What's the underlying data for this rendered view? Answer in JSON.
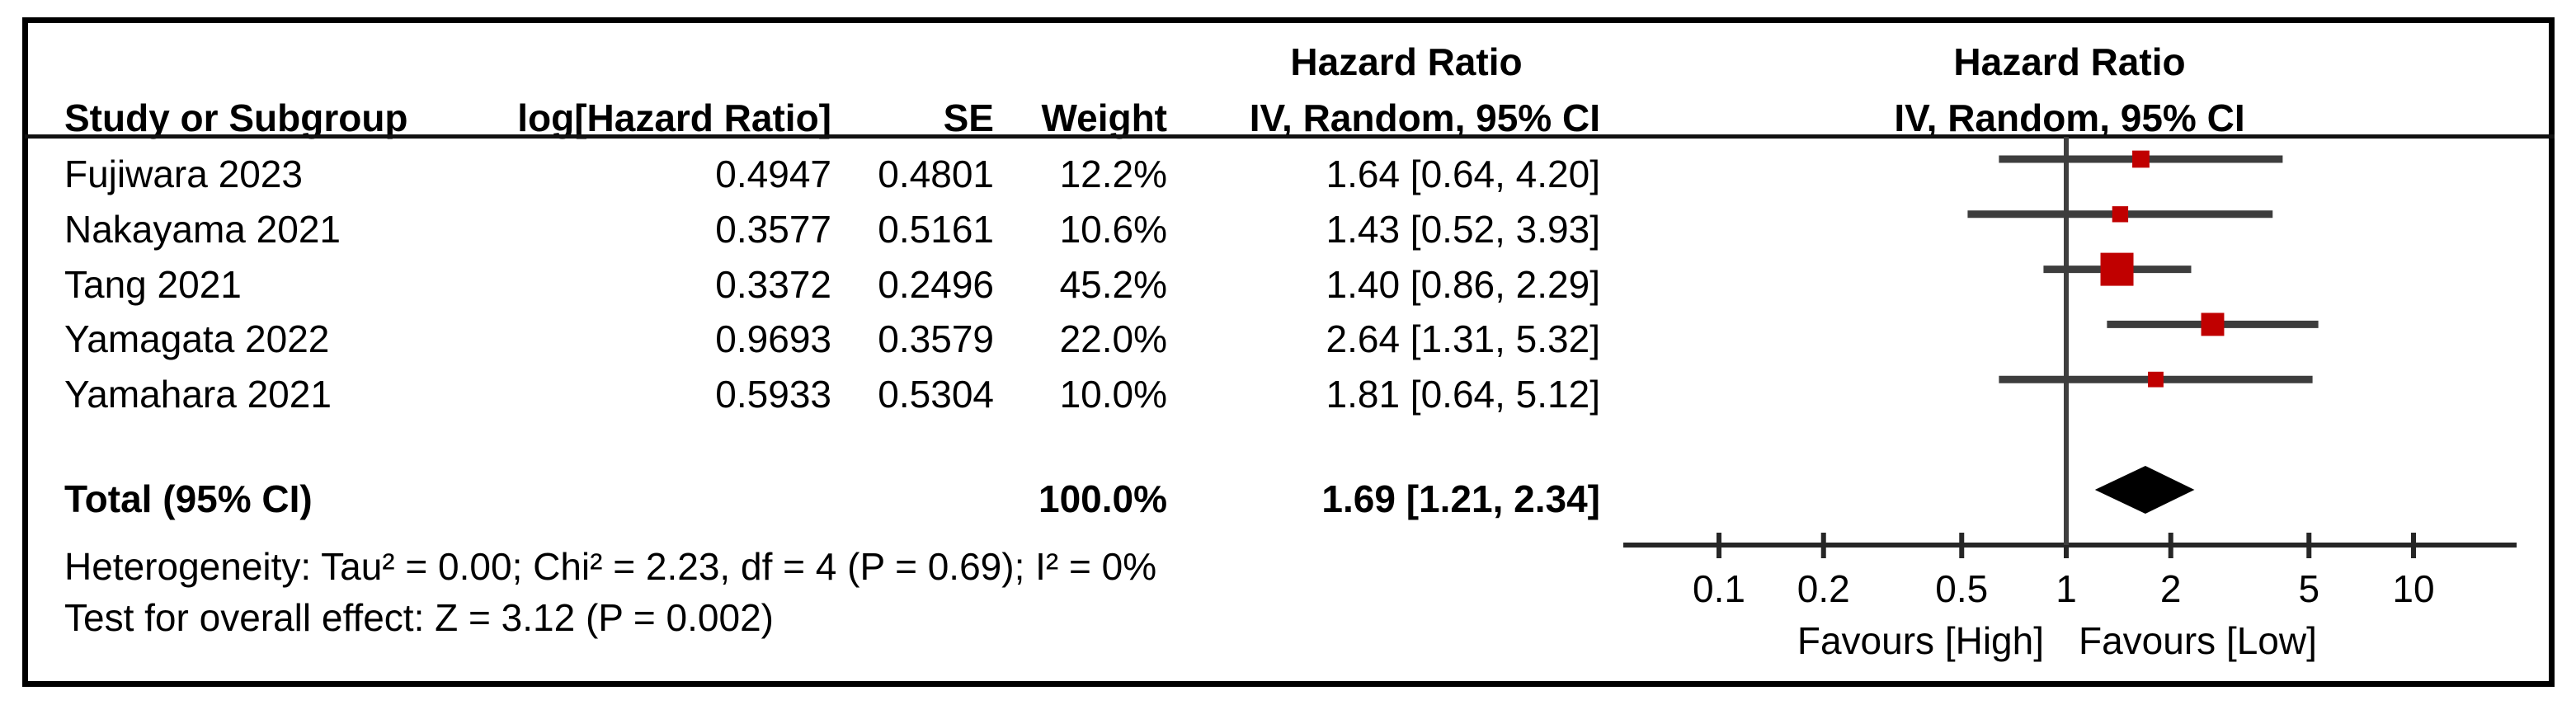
{
  "plot": {
    "col_headers": {
      "study": "Study or Subgroup",
      "log_hr": "log[Hazard Ratio]",
      "se": "SE",
      "weight": "Weight",
      "stats_line1": "Hazard Ratio",
      "stats_line2": "IV, Random, 95% CI",
      "graph_line1": "Hazard Ratio",
      "graph_line2": "IV, Random, 95% CI"
    },
    "rows": [
      {
        "study": "Fujiwara 2023",
        "log_hr": "0.4947",
        "se": "0.4801",
        "weight": "12.2%",
        "estimate": "1.64 [0.64, 4.20]"
      },
      {
        "study": "Nakayama 2021",
        "log_hr": "0.3577",
        "se": "0.5161",
        "weight": "10.6%",
        "estimate": "1.43 [0.52, 3.93]"
      },
      {
        "study": "Tang 2021",
        "log_hr": "0.3372",
        "se": "0.2496",
        "weight": "45.2%",
        "estimate": "1.40 [0.86, 2.29]"
      },
      {
        "study": "Yamagata 2022",
        "log_hr": "0.9693",
        "se": "0.3579",
        "weight": "22.0%",
        "estimate": "2.64 [1.31, 5.32]"
      },
      {
        "study": "Yamahara 2021",
        "log_hr": "0.5933",
        "se": "0.5304",
        "weight": "10.0%",
        "estimate": "1.81 [0.64, 5.12]"
      }
    ],
    "total": {
      "label": "Total (95% CI)",
      "weight": "100.0%",
      "estimate": "1.69 [1.21, 2.34]"
    },
    "heterogeneity": "Heterogeneity: Tau² = 0.00; Chi² = 2.23, df = 4 (P = 0.69); I² = 0%",
    "overall_effect": "Test for overall effect: Z = 3.12 (P = 0.002)"
  },
  "chart_data": {
    "type": "forest",
    "effect_measure": "Hazard Ratio",
    "model": "IV, Random, 95% CI",
    "x_scale": "log10",
    "xlim": [
      0.05,
      20
    ],
    "ticks": [
      0.1,
      0.2,
      0.5,
      1,
      2,
      5,
      10
    ],
    "null_line": 1,
    "studies": [
      {
        "name": "Fujiwara 2023",
        "hr": 1.64,
        "ci_low": 0.64,
        "ci_high": 4.2,
        "weight_pct": 12.2
      },
      {
        "name": "Nakayama 2021",
        "hr": 1.43,
        "ci_low": 0.52,
        "ci_high": 3.93,
        "weight_pct": 10.6
      },
      {
        "name": "Tang 2021",
        "hr": 1.4,
        "ci_low": 0.86,
        "ci_high": 2.29,
        "weight_pct": 45.2
      },
      {
        "name": "Yamagata 2022",
        "hr": 2.64,
        "ci_low": 1.31,
        "ci_high": 5.32,
        "weight_pct": 22.0
      },
      {
        "name": "Yamahara 2021",
        "hr": 1.81,
        "ci_low": 0.64,
        "ci_high": 5.12,
        "weight_pct": 10.0
      }
    ],
    "total": {
      "hr": 1.69,
      "ci_low": 1.21,
      "ci_high": 2.34,
      "weight_pct": 100.0
    },
    "heterogeneity": {
      "tau2": 0.0,
      "chi2": 2.23,
      "df": 4,
      "p": 0.69,
      "i2_pct": 0
    },
    "overall_effect": {
      "z": 3.12,
      "p": 0.002
    },
    "favours_left": "Favours [High]",
    "favours_right": "Favours [Low]",
    "colors": {
      "square": "#c00000",
      "ci_line": "#3d3d3d",
      "diamond": "#000000",
      "axis": "#262626",
      "text": "#000000"
    }
  }
}
